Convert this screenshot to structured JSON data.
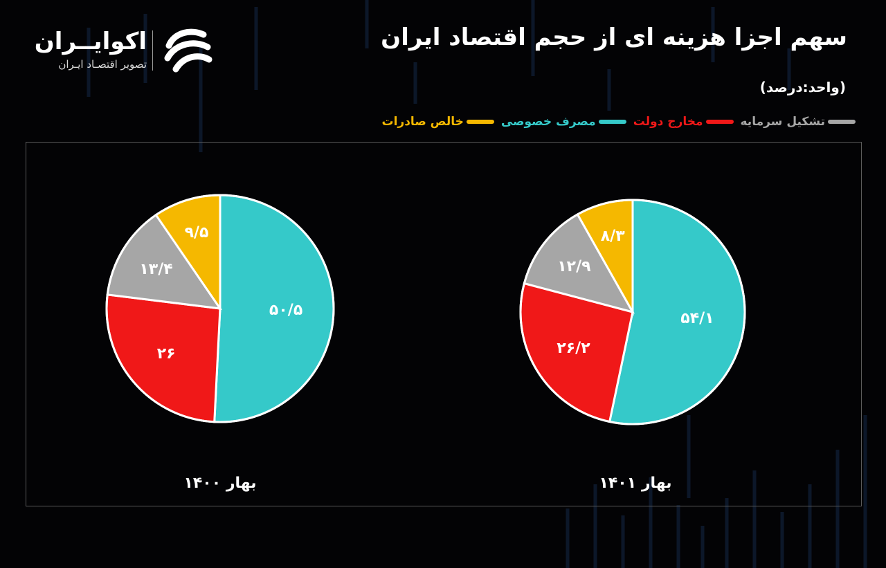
{
  "header": {
    "title": "سهم اجزا هزینه ای از حجم اقتصاد ایران",
    "unit": "(واحد:درصد)"
  },
  "logo": {
    "name": "اکوایــران",
    "tagline": "تصویر اقتصـاد ایـران"
  },
  "legend": [
    {
      "label": "خالص صادرات",
      "color": "#f5b800"
    },
    {
      "label": "مصرف خصوصی",
      "color": "#35c9c9"
    },
    {
      "label": "مخارج دولت",
      "color": "#f01818"
    },
    {
      "label": "تشکیل سرمایه",
      "color": "#a6a6a6"
    }
  ],
  "chart_data": [
    {
      "type": "pie",
      "caption": "بهار ۱۴۰۰",
      "slices": [
        {
          "name": "مصرف خصوصی",
          "value": 50.5,
          "label": "۵۰/۵",
          "color": "#35c9c9"
        },
        {
          "name": "مخارج دولت",
          "value": 26,
          "label": "۲۶",
          "color": "#f01818"
        },
        {
          "name": "تشکیل سرمایه",
          "value": 13.4,
          "label": "۱۳/۴",
          "color": "#a6a6a6"
        },
        {
          "name": "خالص صادرات",
          "value": 9.5,
          "label": "۹/۵",
          "color": "#f5b800"
        }
      ]
    },
    {
      "type": "pie",
      "caption": "بهار ۱۴۰۱",
      "slices": [
        {
          "name": "مصرف خصوصی",
          "value": 54.1,
          "label": "۵۴/۱",
          "color": "#35c9c9"
        },
        {
          "name": "مخارج دولت",
          "value": 26.2,
          "label": "۲۶/۲",
          "color": "#f01818"
        },
        {
          "name": "تشکیل سرمایه",
          "value": 12.9,
          "label": "۱۲/۹",
          "color": "#a6a6a6"
        },
        {
          "name": "خالص صادرات",
          "value": 8.3,
          "label": "۸/۳",
          "color": "#f5b800"
        }
      ]
    }
  ]
}
